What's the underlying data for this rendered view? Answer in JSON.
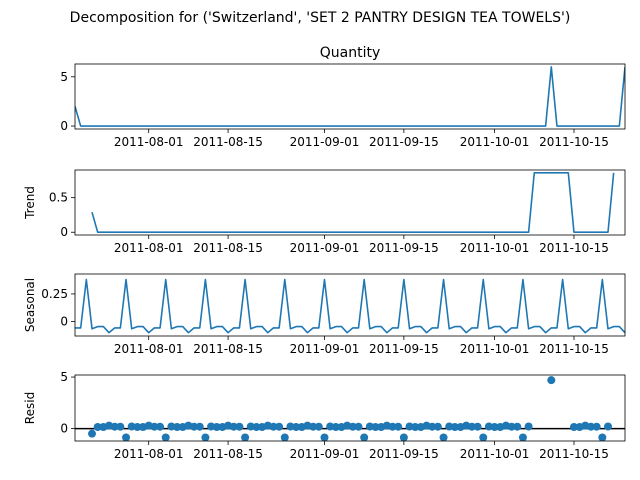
{
  "chart_data": {
    "type": "line",
    "suptitle": "Decomposition for ('Switzerland', 'SET 2 PANTRY DESIGN TEA TOWELS')",
    "x_range": [
      "2011-07-19",
      "2011-10-24"
    ],
    "x_ticks": [
      "2011-08-01",
      "2011-08-15",
      "2011-09-01",
      "2011-09-15",
      "2011-10-01",
      "2011-10-15"
    ],
    "panels": [
      {
        "name": "observed",
        "title": "Quantity",
        "ylabel": "",
        "type": "line",
        "ylim": [
          -0.3,
          6.3
        ],
        "yticks": [
          0,
          5
        ],
        "color": "#1f77b4",
        "points": [
          [
            "2011-07-19",
            2
          ],
          [
            "2011-07-20",
            0
          ],
          [
            "2011-10-10",
            0
          ],
          [
            "2011-10-11",
            6
          ],
          [
            "2011-10-12",
            0
          ],
          [
            "2011-10-23",
            0
          ],
          [
            "2011-10-24",
            6
          ]
        ]
      },
      {
        "name": "trend",
        "title": "",
        "ylabel": "Trend",
        "type": "line",
        "ylim": [
          -0.04,
          0.9
        ],
        "yticks": [
          0.0,
          0.5
        ],
        "color": "#1f77b4",
        "points": [
          [
            "2011-07-22",
            0.29
          ],
          [
            "2011-07-23",
            0
          ],
          [
            "2011-10-07",
            0
          ],
          [
            "2011-10-08",
            0.86
          ],
          [
            "2011-10-14",
            0.86
          ],
          [
            "2011-10-15",
            0
          ],
          [
            "2011-10-21",
            0
          ],
          [
            "2011-10-22",
            0.86
          ]
        ]
      },
      {
        "name": "seasonal",
        "title": "",
        "ylabel": "Seasonal",
        "type": "line",
        "ylim": [
          -0.13,
          0.43
        ],
        "yticks": [
          0.0,
          0.25
        ],
        "color": "#1f77b4",
        "start": "2011-07-19",
        "period_values": [
          -0.057,
          -0.057,
          0.38,
          -0.065,
          -0.045,
          -0.045,
          -0.1
        ]
      },
      {
        "name": "resid",
        "title": "",
        "ylabel": "Resid",
        "type": "scatter",
        "ylim": [
          -1.2,
          5.2
        ],
        "yticks": [
          0,
          5
        ],
        "color": "#1f77b4",
        "baseline": 0,
        "outliers": [
          [
            "2011-10-11",
            4.7
          ]
        ]
      }
    ]
  }
}
